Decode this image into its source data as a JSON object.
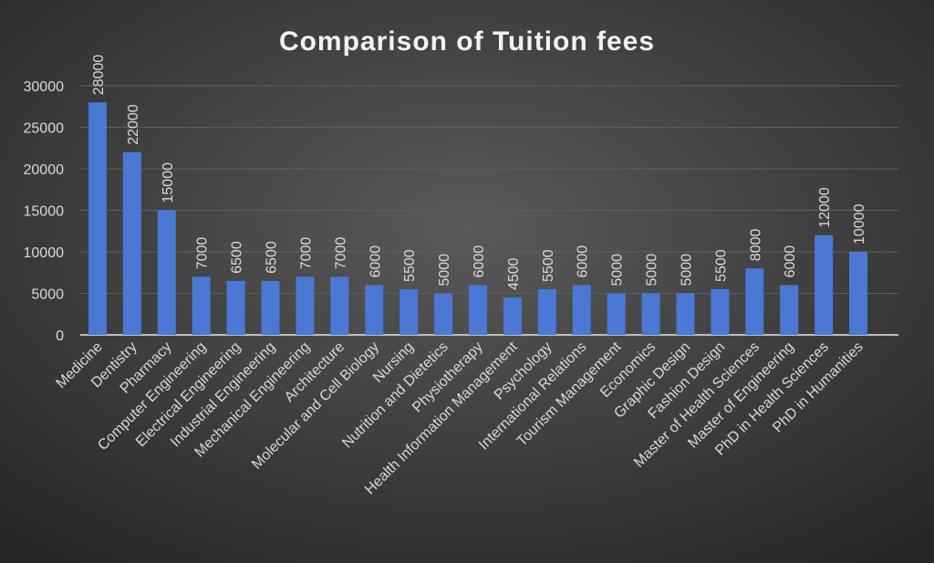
{
  "chart_data": {
    "type": "bar",
    "title": "Comparison of Tuition fees",
    "categories": [
      "Medicine",
      "Dentistry",
      "Pharmacy",
      "Computer Engineering",
      "Electrical Engineering",
      "Industrial Engineering",
      "Mechanical Engineering",
      "Architecture",
      "Molecular and Cell Biology",
      "Nursing",
      "Nutrition and Dietetics",
      "Physiotherapy",
      "Health Information Management",
      "Psychology",
      "International Relations",
      "Tourism Management",
      "Economics",
      "Graphic Design",
      "Fashion Design",
      "Master of Health Sciences",
      "Master of Engineering",
      "PhD in Health Sciences",
      "PhD in Humanities"
    ],
    "values": [
      28000,
      22000,
      15000,
      7000,
      6500,
      6500,
      7000,
      7000,
      6000,
      5500,
      5000,
      6000,
      4500,
      5500,
      6000,
      5000,
      5000,
      5000,
      5500,
      8000,
      6000,
      12000,
      10000
    ],
    "color": "#4a78d4",
    "ylim": [
      0,
      30000
    ],
    "yticks": [
      0,
      5000,
      10000,
      15000,
      20000,
      25000,
      30000
    ],
    "grid": true
  }
}
